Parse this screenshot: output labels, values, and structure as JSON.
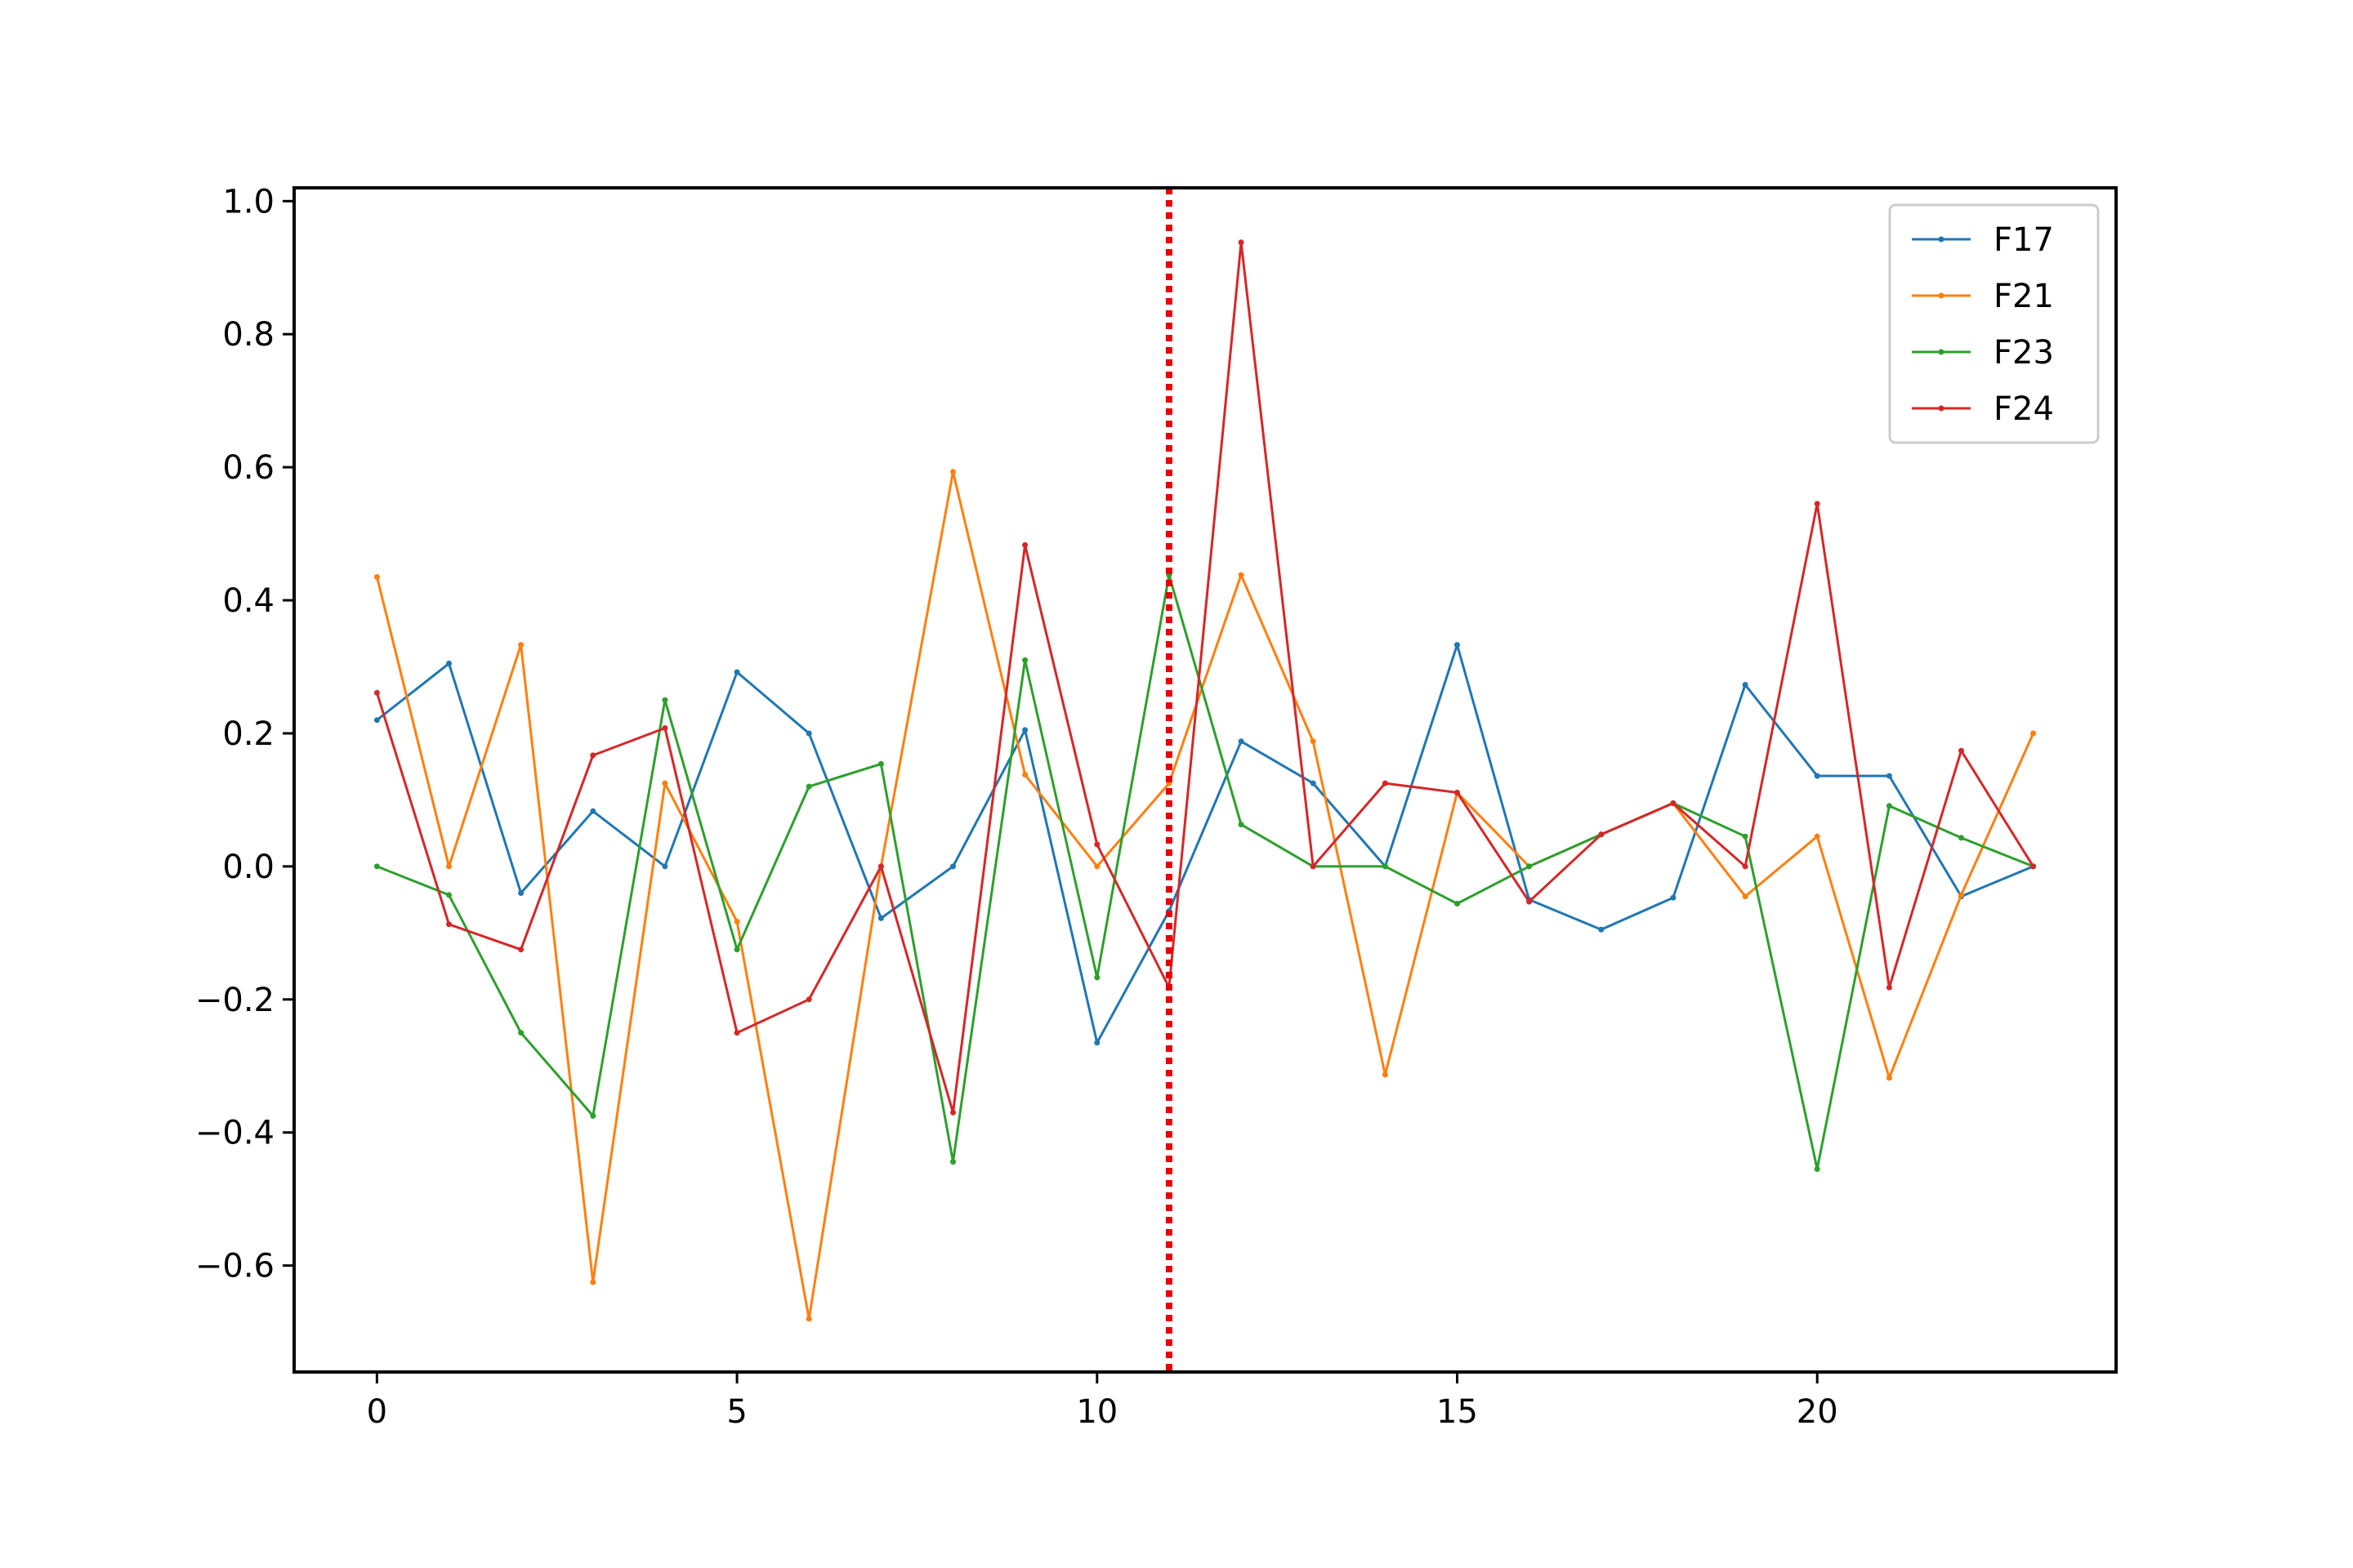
{
  "chart_data": {
    "type": "line",
    "x": [
      0,
      1,
      2,
      3,
      4,
      5,
      6,
      7,
      8,
      9,
      10,
      11,
      12,
      13,
      14,
      15,
      16,
      17,
      18,
      19,
      20,
      21,
      22,
      23
    ],
    "xlim": [
      -1.15,
      24.15
    ],
    "ylim": [
      -0.76,
      1.02
    ],
    "xticks": [
      0,
      5,
      10,
      15,
      20
    ],
    "yticks": [
      -0.6,
      -0.4,
      -0.2,
      0.0,
      0.2,
      0.4,
      0.6,
      0.8,
      1.0
    ],
    "xtick_labels": [
      "0",
      "5",
      "10",
      "15",
      "20"
    ],
    "ytick_labels": [
      "−0.6",
      "−0.4",
      "−0.2",
      "0.0",
      "0.2",
      "0.4",
      "0.6",
      "0.8",
      "1.0"
    ],
    "grid": false,
    "legend_position": "top-right",
    "vline": {
      "x": 11,
      "color": "#e8000b",
      "style": "dotted"
    },
    "series": [
      {
        "name": "F17",
        "color": "#1f77b4",
        "values": [
          0.22,
          0.305,
          -0.04,
          0.083,
          0.0,
          0.292,
          0.2,
          -0.078,
          0.0,
          0.205,
          -0.265,
          -0.067,
          0.188,
          0.125,
          0.0,
          0.333,
          -0.05,
          -0.095,
          -0.047,
          0.273,
          0.136,
          0.136,
          -0.045,
          0.0
        ]
      },
      {
        "name": "F21",
        "color": "#ff7f0e",
        "values": [
          0.435,
          0.0,
          0.333,
          -0.625,
          0.125,
          -0.083,
          -0.68,
          0.0,
          0.593,
          0.138,
          0.0,
          0.125,
          0.438,
          0.188,
          -0.313,
          0.111,
          0.0,
          0.048,
          0.095,
          -0.045,
          0.045,
          -0.318,
          -0.043,
          0.2
        ]
      },
      {
        "name": "F23",
        "color": "#2ca02c",
        "values": [
          0.0,
          -0.043,
          -0.25,
          -0.375,
          0.25,
          -0.125,
          0.12,
          0.154,
          -0.444,
          0.31,
          -0.167,
          0.438,
          0.063,
          0.0,
          0.0,
          -0.056,
          0.0,
          0.048,
          0.095,
          0.045,
          -0.455,
          0.091,
          0.043,
          0.0
        ]
      },
      {
        "name": "F24",
        "color": "#d62728",
        "values": [
          0.261,
          -0.087,
          -0.125,
          0.167,
          0.208,
          -0.25,
          -0.2,
          0.0,
          -0.37,
          0.483,
          0.033,
          -0.182,
          0.938,
          0.0,
          0.125,
          0.111,
          -0.053,
          0.048,
          0.095,
          0.0,
          0.545,
          -0.182,
          0.174,
          0.0
        ]
      }
    ]
  }
}
